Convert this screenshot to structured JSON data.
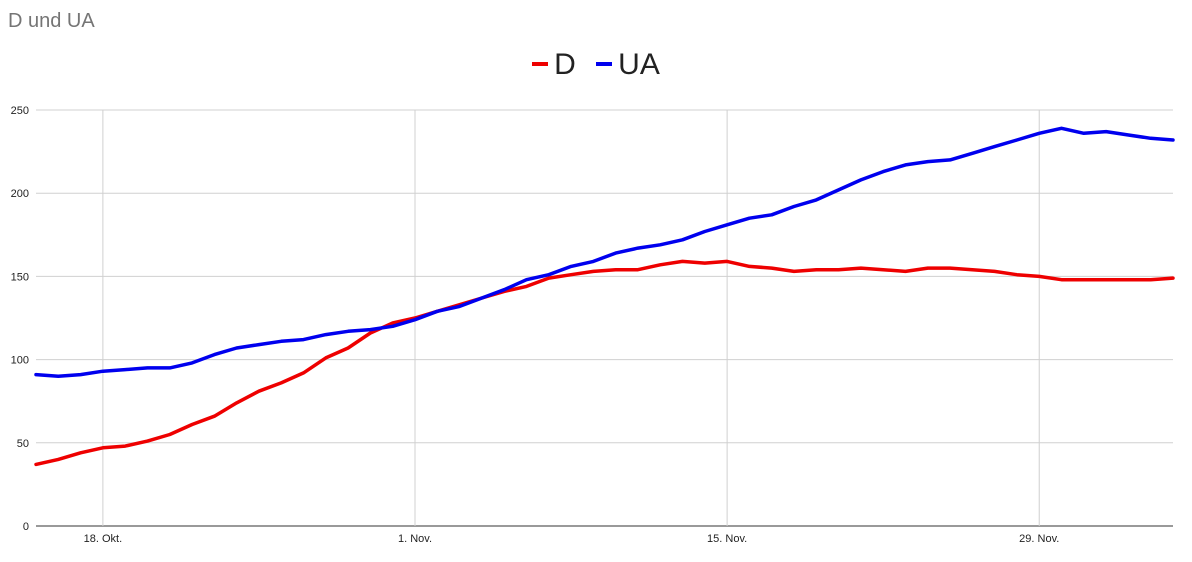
{
  "chart_data": {
    "type": "line",
    "title": "D und UA",
    "xlabel": "",
    "ylabel": "",
    "x_start": "2020-10-15",
    "x_end": "2020-12-05",
    "x_ticks": [
      {
        "date": "2020-10-18",
        "label": "18. Okt."
      },
      {
        "date": "2020-11-01",
        "label": "1. Nov."
      },
      {
        "date": "2020-11-15",
        "label": "15. Nov."
      },
      {
        "date": "2020-11-29",
        "label": "29. Nov."
      }
    ],
    "ylim": [
      0,
      250
    ],
    "y_ticks": [
      0,
      50,
      100,
      150,
      200,
      250
    ],
    "grid": true,
    "legend_position": "top-center",
    "x": [
      "2020-10-15",
      "2020-10-16",
      "2020-10-17",
      "2020-10-18",
      "2020-10-19",
      "2020-10-20",
      "2020-10-21",
      "2020-10-22",
      "2020-10-23",
      "2020-10-24",
      "2020-10-25",
      "2020-10-26",
      "2020-10-27",
      "2020-10-28",
      "2020-10-29",
      "2020-10-30",
      "2020-10-31",
      "2020-11-01",
      "2020-11-02",
      "2020-11-03",
      "2020-11-04",
      "2020-11-05",
      "2020-11-06",
      "2020-11-07",
      "2020-11-08",
      "2020-11-09",
      "2020-11-10",
      "2020-11-11",
      "2020-11-12",
      "2020-11-13",
      "2020-11-14",
      "2020-11-15",
      "2020-11-16",
      "2020-11-17",
      "2020-11-18",
      "2020-11-19",
      "2020-11-20",
      "2020-11-21",
      "2020-11-22",
      "2020-11-23",
      "2020-11-24",
      "2020-11-25",
      "2020-11-26",
      "2020-11-27",
      "2020-11-28",
      "2020-11-29",
      "2020-11-30",
      "2020-12-01",
      "2020-12-02",
      "2020-12-03",
      "2020-12-04",
      "2020-12-05"
    ],
    "series": [
      {
        "name": "D",
        "color": "#ee0000",
        "values": [
          37,
          40,
          44,
          47,
          48,
          51,
          55,
          61,
          66,
          74,
          81,
          86,
          92,
          101,
          107,
          116,
          122,
          125,
          129,
          133,
          137,
          141,
          144,
          149,
          151,
          153,
          154,
          154,
          157,
          159,
          158,
          159,
          156,
          155,
          153,
          154,
          154,
          155,
          154,
          153,
          155,
          155,
          154,
          153,
          151,
          150,
          148,
          148,
          148,
          148,
          148,
          149
        ]
      },
      {
        "name": "UA",
        "color": "#0000ee",
        "values": [
          91,
          90,
          91,
          93,
          94,
          95,
          95,
          98,
          103,
          107,
          109,
          111,
          112,
          115,
          117,
          118,
          120,
          124,
          129,
          132,
          137,
          142,
          148,
          151,
          156,
          159,
          164,
          167,
          169,
          172,
          177,
          181,
          185,
          187,
          192,
          196,
          202,
          208,
          213,
          217,
          219,
          220,
          224,
          228,
          232,
          236,
          239,
          236,
          237,
          235,
          233,
          232
        ]
      }
    ]
  }
}
